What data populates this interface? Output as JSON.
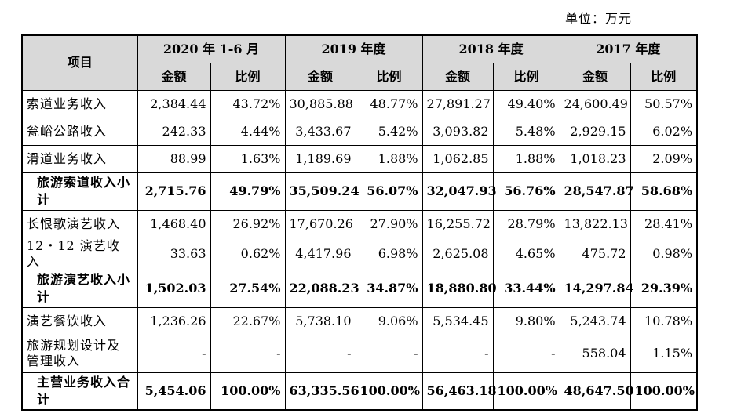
{
  "unit": "单位：万元",
  "table": {
    "item_header": "项目",
    "periods": [
      "2020 年 1-6 月",
      "2019 年度",
      "2018 年度",
      "2017 年度"
    ],
    "sub_headers": [
      "金额",
      "比例"
    ],
    "rows": [
      {
        "label": "索道业务收入",
        "values": [
          "2,384.44",
          "43.72%",
          "30,885.88",
          "48.77%",
          "27,891.27",
          "49.40%",
          "24,600.49",
          "50.57%"
        ],
        "bold": false,
        "tall": false
      },
      {
        "label": "瓮峪公路收入",
        "values": [
          "242.33",
          "4.44%",
          "3,433.67",
          "5.42%",
          "3,093.82",
          "5.48%",
          "2,929.15",
          "6.02%"
        ],
        "bold": false,
        "tall": false
      },
      {
        "label": "滑道业务收入",
        "values": [
          "88.99",
          "1.63%",
          "1,189.69",
          "1.88%",
          "1,062.85",
          "1.88%",
          "1,018.23",
          "2.09%"
        ],
        "bold": false,
        "tall": false
      },
      {
        "label": "旅游索道收入小计",
        "values": [
          "2,715.76",
          "49.79%",
          "35,509.24",
          "56.07%",
          "32,047.93",
          "56.76%",
          "28,547.87",
          "58.68%"
        ],
        "bold": true,
        "tall": true
      },
      {
        "label": "长恨歌演艺收入",
        "values": [
          "1,468.40",
          "26.92%",
          "17,670.26",
          "27.90%",
          "16,255.72",
          "28.79%",
          "13,822.13",
          "28.41%"
        ],
        "bold": false,
        "tall": false
      },
      {
        "label": "12・12 演艺收入",
        "values": [
          "33.63",
          "0.62%",
          "4,417.96",
          "6.98%",
          "2,625.08",
          "4.65%",
          "475.72",
          "0.98%"
        ],
        "bold": false,
        "tall": false
      },
      {
        "label": "旅游演艺收入小计",
        "values": [
          "1,502.03",
          "27.54%",
          "22,088.23",
          "34.87%",
          "18,880.80",
          "33.44%",
          "14,297.84",
          "29.39%"
        ],
        "bold": true,
        "tall": true
      },
      {
        "label": "演艺餐饮收入",
        "values": [
          "1,236.26",
          "22.67%",
          "5,738.10",
          "9.06%",
          "5,534.45",
          "9.80%",
          "5,243.74",
          "10.78%"
        ],
        "bold": false,
        "tall": false
      },
      {
        "label": "旅游规划设计及管理收入",
        "values": [
          "-",
          "-",
          "-",
          "-",
          "-",
          "-",
          "558.04",
          "1.15%"
        ],
        "bold": false,
        "tall": true
      },
      {
        "label": "主营业务收入合计",
        "values": [
          "5,454.06",
          "100.00%",
          "63,335.56",
          "100.00%",
          "56,463.18",
          "100.00%",
          "48,647.50",
          "100.00%"
        ],
        "bold": true,
        "tall": true
      }
    ]
  }
}
